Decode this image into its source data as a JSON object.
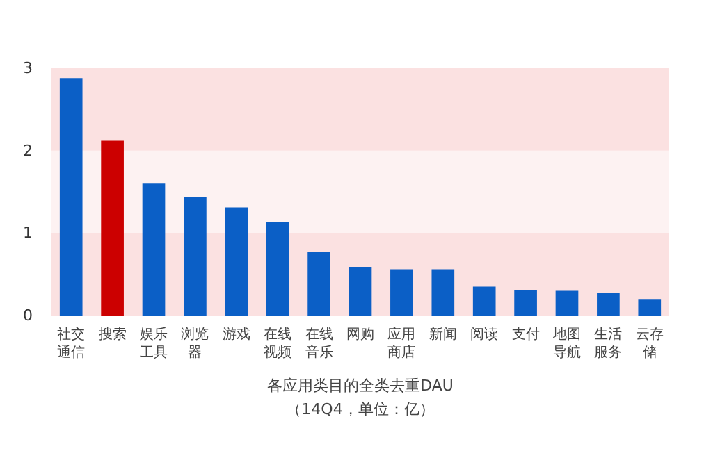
{
  "chart_data": {
    "type": "bar",
    "title": "各应用类目的全类去重DAU",
    "subtitle": "（14Q4，单位：亿）",
    "categories": [
      "社交通信",
      "搜索",
      "娱乐工具",
      "浏览器",
      "游戏",
      "在线视频",
      "在线音乐",
      "网购",
      "应用商店",
      "新闻",
      "阅读",
      "支付",
      "地图导航",
      "生活服务",
      "云存储"
    ],
    "values": [
      2.88,
      2.12,
      1.6,
      1.44,
      1.31,
      1.13,
      0.77,
      0.59,
      0.56,
      0.56,
      0.35,
      0.31,
      0.3,
      0.27,
      0.2
    ],
    "colors": [
      "#0b5fc6",
      "#cc0000",
      "#0b5fc6",
      "#0b5fc6",
      "#0b5fc6",
      "#0b5fc6",
      "#0b5fc6",
      "#0b5fc6",
      "#0b5fc6",
      "#0b5fc6",
      "#0b5fc6",
      "#0b5fc6",
      "#0b5fc6",
      "#0b5fc6",
      "#0b5fc6"
    ],
    "ylim": [
      0,
      3
    ],
    "yticks": [
      0,
      1,
      2,
      3
    ],
    "bands": [
      {
        "axis": "y",
        "from": 0,
        "to": 1,
        "color": "#fbe1e1"
      },
      {
        "axis": "y",
        "from": 1,
        "to": 2,
        "color": "#fdf2f2"
      },
      {
        "axis": "y",
        "from": 2,
        "to": 3,
        "color": "#fbe1e1"
      }
    ]
  }
}
